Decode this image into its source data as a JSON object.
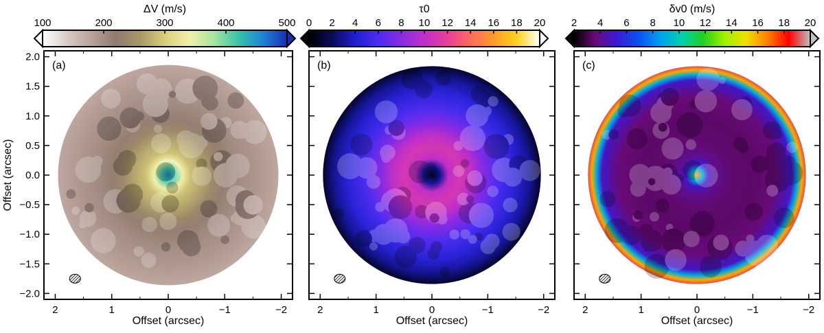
{
  "figure": {
    "x_axis_label": "Offset (arcsec)",
    "y_axis_label": "Offset (arcsec)"
  },
  "chart_data": [
    {
      "type": "heatmap",
      "panel_label": "(a)",
      "colorbar_title": "ΔV (m/s)",
      "colorbar_ticks": [
        100,
        200,
        300,
        400,
        500
      ],
      "colorbar_range": [
        100,
        500
      ],
      "colormap": [
        "#ffffff",
        "#d9cbc5",
        "#b9a29a",
        "#8f7a6c",
        "#a89868",
        "#d8cf7a",
        "#f2f0a8",
        "#a7e6a0",
        "#38c4a8",
        "#1f84d8",
        "#1a2fb0"
      ],
      "xlabel": "Offset (arcsec)",
      "ylabel": "Offset (arcsec)",
      "xlim": [
        2.2,
        -2.2
      ],
      "ylim": [
        -2.1,
        2.1
      ],
      "x_ticks": [
        2,
        1,
        0,
        -1,
        -2
      ],
      "x_tick_labels": [
        "2",
        "1",
        "0",
        "−1",
        "−2"
      ],
      "y_ticks": [
        2.0,
        1.5,
        1.0,
        0.5,
        0.0,
        -0.5,
        -1.0,
        -1.5,
        -2.0
      ],
      "y_tick_labels": [
        "2.0",
        "1.5",
        "1.0",
        "0.5",
        "0.0",
        "−0.5",
        "−1.0",
        "−1.5",
        "−2.0"
      ],
      "map_radius_arcsec": 1.95,
      "radial_profile": {
        "r_arcsec": [
          0.0,
          0.1,
          0.25,
          0.4,
          0.6,
          0.8,
          1.0,
          1.3,
          1.6,
          1.95
        ],
        "values": [
          460,
          420,
          340,
          290,
          270,
          240,
          215,
          200,
          190,
          175
        ]
      }
    },
    {
      "type": "heatmap",
      "panel_label": "(b)",
      "colorbar_title": "τ0",
      "colorbar_ticks": [
        0,
        2,
        4,
        6,
        8,
        10,
        12,
        14,
        16,
        18,
        20
      ],
      "colorbar_range": [
        0,
        20
      ],
      "colormap": [
        "#000000",
        "#0a0a5a",
        "#1f1fd0",
        "#4b2cf0",
        "#8a2be2",
        "#c02fc8",
        "#e8409a",
        "#ff6a5a",
        "#ff9a2a",
        "#ffd21a",
        "#ffffff"
      ],
      "xlabel": "Offset (arcsec)",
      "ylabel": "",
      "xlim": [
        2.2,
        -2.2
      ],
      "ylim": [
        -2.1,
        2.1
      ],
      "x_ticks": [
        2,
        1,
        0,
        -1,
        -2
      ],
      "x_tick_labels": [
        "2",
        "1",
        "0",
        "−1",
        "−2"
      ],
      "y_ticks": [
        2.0,
        1.5,
        1.0,
        0.5,
        0.0,
        -0.5,
        -1.0,
        -1.5,
        -2.0
      ],
      "y_tick_labels": [],
      "map_radius_arcsec": 1.95,
      "radial_profile": {
        "r_arcsec": [
          0.0,
          0.15,
          0.3,
          0.5,
          0.7,
          0.9,
          1.2,
          1.5,
          1.75,
          1.95
        ],
        "values": [
          1,
          3,
          10,
          11,
          10,
          8,
          6,
          4.5,
          3,
          1
        ]
      }
    },
    {
      "type": "heatmap",
      "panel_label": "(c)",
      "colorbar_title": "δv0 (m/s)",
      "colorbar_ticks": [
        2,
        4,
        6,
        8,
        10,
        12,
        14,
        16,
        18,
        20
      ],
      "colorbar_range": [
        2,
        20
      ],
      "colormap": [
        "#000000",
        "#6a0a7a",
        "#3a1ad8",
        "#0a50f0",
        "#00a0f0",
        "#00d0b0",
        "#20d020",
        "#a0f000",
        "#f0e000",
        "#ff8000",
        "#ff0000",
        "#c0c0c0"
      ],
      "xlabel": "Offset (arcsec)",
      "ylabel": "",
      "xlim": [
        2.2,
        -2.2
      ],
      "ylim": [
        -2.1,
        2.1
      ],
      "x_ticks": [
        2,
        1,
        0,
        -1,
        -2
      ],
      "x_tick_labels": [
        "2",
        "1",
        "0",
        "−1",
        "−2"
      ],
      "y_ticks": [
        2.0,
        1.5,
        1.0,
        0.5,
        0.0,
        -0.5,
        -1.0,
        -1.5,
        -2.0
      ],
      "y_tick_labels": [],
      "map_radius_arcsec": 1.95,
      "radial_profile": {
        "r_arcsec": [
          0.0,
          0.1,
          0.2,
          0.35,
          0.6,
          1.0,
          1.4,
          1.7,
          1.8,
          1.88,
          1.95
        ],
        "values": [
          16,
          9,
          5,
          4,
          3.5,
          3.4,
          3.6,
          5,
          9,
          16,
          19
        ]
      }
    }
  ]
}
